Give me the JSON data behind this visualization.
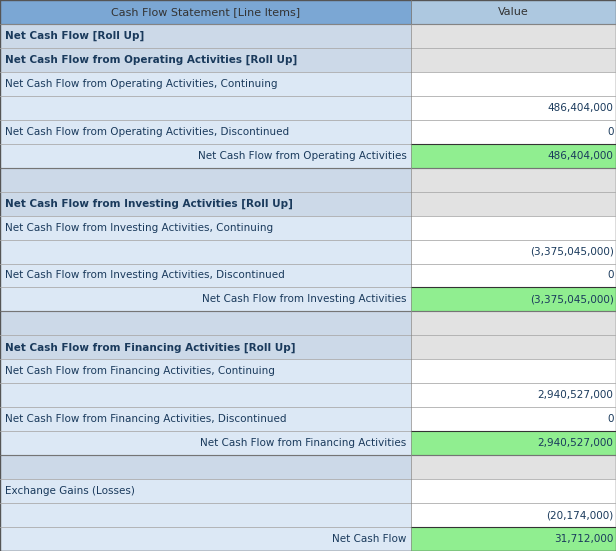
{
  "header": [
    "Cash Flow Statement [Line Items]",
    "Value"
  ],
  "rows": [
    {
      "label": "Net Cash Flow [Roll Up]",
      "value": "",
      "style": "bold",
      "label_align": "left",
      "bg_left": "#ccd9e8",
      "bg_right": "#e2e2e2"
    },
    {
      "label": "Net Cash Flow from Operating Activities [Roll Up]",
      "value": "",
      "style": "bold",
      "label_align": "left",
      "bg_left": "#ccd9e8",
      "bg_right": "#e2e2e2"
    },
    {
      "label": "Net Cash Flow from Operating Activities, Continuing",
      "value": "",
      "style": "normal",
      "label_align": "left",
      "bg_left": "#dce8f5",
      "bg_right": "#ffffff"
    },
    {
      "label": "",
      "value": "486,404,000",
      "style": "normal",
      "label_align": "left",
      "bg_left": "#dce8f5",
      "bg_right": "#ffffff"
    },
    {
      "label": "Net Cash Flow from Operating Activities, Discontinued",
      "value": "0",
      "style": "normal",
      "label_align": "left",
      "bg_left": "#dce8f5",
      "bg_right": "#ffffff"
    },
    {
      "label": "Net Cash Flow from Operating Activities",
      "value": "486,404,000",
      "style": "normal",
      "label_align": "right",
      "bg_left": "#dce8f5",
      "bg_right": "#90ee90"
    },
    {
      "label": "",
      "value": "",
      "style": "normal",
      "label_align": "left",
      "bg_left": "#ccd9e8",
      "bg_right": "#e2e2e2"
    },
    {
      "label": "Net Cash Flow from Investing Activities [Roll Up]",
      "value": "",
      "style": "bold",
      "label_align": "left",
      "bg_left": "#ccd9e8",
      "bg_right": "#e2e2e2"
    },
    {
      "label": "Net Cash Flow from Investing Activities, Continuing",
      "value": "",
      "style": "normal",
      "label_align": "left",
      "bg_left": "#dce8f5",
      "bg_right": "#ffffff"
    },
    {
      "label": "",
      "value": "(3,375,045,000)",
      "style": "normal",
      "label_align": "left",
      "bg_left": "#dce8f5",
      "bg_right": "#ffffff"
    },
    {
      "label": "Net Cash Flow from Investing Activities, Discontinued",
      "value": "0",
      "style": "normal",
      "label_align": "left",
      "bg_left": "#dce8f5",
      "bg_right": "#ffffff"
    },
    {
      "label": "Net Cash Flow from Investing Activities",
      "value": "(3,375,045,000)",
      "style": "normal",
      "label_align": "right",
      "bg_left": "#dce8f5",
      "bg_right": "#90ee90"
    },
    {
      "label": "",
      "value": "",
      "style": "normal",
      "label_align": "left",
      "bg_left": "#ccd9e8",
      "bg_right": "#e2e2e2"
    },
    {
      "label": "Net Cash Flow from Financing Activities [Roll Up]",
      "value": "",
      "style": "bold",
      "label_align": "left",
      "bg_left": "#ccd9e8",
      "bg_right": "#e2e2e2"
    },
    {
      "label": "Net Cash Flow from Financing Activities, Continuing",
      "value": "",
      "style": "normal",
      "label_align": "left",
      "bg_left": "#dce8f5",
      "bg_right": "#ffffff"
    },
    {
      "label": "",
      "value": "2,940,527,000",
      "style": "normal",
      "label_align": "left",
      "bg_left": "#dce8f5",
      "bg_right": "#ffffff"
    },
    {
      "label": "Net Cash Flow from Financing Activities, Discontinued",
      "value": "0",
      "style": "normal",
      "label_align": "left",
      "bg_left": "#dce8f5",
      "bg_right": "#ffffff"
    },
    {
      "label": "Net Cash Flow from Financing Activities",
      "value": "2,940,527,000",
      "style": "normal",
      "label_align": "right",
      "bg_left": "#dce8f5",
      "bg_right": "#90ee90"
    },
    {
      "label": "",
      "value": "",
      "style": "normal",
      "label_align": "left",
      "bg_left": "#ccd9e8",
      "bg_right": "#e2e2e2"
    },
    {
      "label": "Exchange Gains (Losses)",
      "value": "",
      "style": "normal",
      "label_align": "left",
      "bg_left": "#dce8f5",
      "bg_right": "#ffffff"
    },
    {
      "label": "",
      "value": "(20,174,000)",
      "style": "normal",
      "label_align": "left",
      "bg_left": "#dce8f5",
      "bg_right": "#ffffff"
    },
    {
      "label": "Net Cash Flow",
      "value": "31,712,000",
      "style": "normal",
      "label_align": "right",
      "bg_left": "#dce8f5",
      "bg_right": "#90ee90"
    }
  ],
  "header_bg_left": "#7ba7d4",
  "header_bg_right": "#adc8e0",
  "header_text_color": "#333333",
  "col_split": 0.668,
  "figsize": [
    6.16,
    5.51
  ],
  "dpi": 100,
  "text_color": "#1a3a5c",
  "font_size": 7.5,
  "header_font_size": 8.0
}
